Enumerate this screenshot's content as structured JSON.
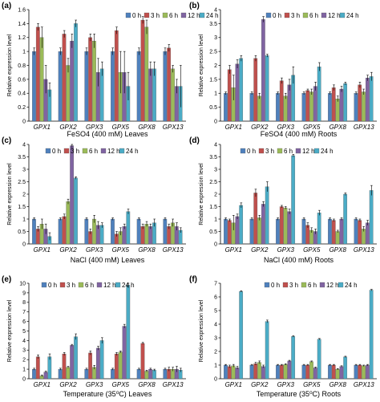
{
  "colors": {
    "0 h": "#4f81bd",
    "3 h": "#c0504d",
    "6 h": "#9bbb59",
    "12 h": "#8064a2",
    "24 h": "#4bacc6"
  },
  "chart_data": [
    {
      "type": "bar",
      "panel": "(a)",
      "caption": "FeSO4 (400 mM)  Leaves",
      "ylabel": "Relative expression level",
      "ylim": [
        0,
        1.6
      ],
      "yticks": [
        "0",
        "0.2",
        "0.4",
        "0.6",
        "0.8",
        "1",
        "1.2",
        "1.4",
        "1.6"
      ],
      "categories": [
        "GPX1",
        "GPX2",
        "GPX3",
        "GPX5",
        "GPX8",
        "GPX13"
      ],
      "series": [
        {
          "name": "0 h",
          "values": [
            1.0,
            1.0,
            1.0,
            1.0,
            1.0,
            1.0
          ],
          "errors": [
            0.05,
            0.05,
            0.05,
            0.05,
            0.05,
            0.05
          ]
        },
        {
          "name": "3 h",
          "values": [
            1.35,
            1.25,
            1.2,
            1.3,
            1.45,
            1.05
          ],
          "errors": [
            0.05,
            0.05,
            0.05,
            0.05,
            0.05,
            0.05
          ]
        },
        {
          "name": "6 h",
          "values": [
            1.2,
            0.8,
            1.15,
            0.7,
            1.35,
            0.75
          ],
          "errors": [
            0.15,
            0.1,
            0.1,
            0.3,
            0.1,
            0.05
          ]
        },
        {
          "name": "12 h",
          "values": [
            0.6,
            1.15,
            0.7,
            0.7,
            0.75,
            0.5
          ],
          "errors": [
            0.2,
            0.1,
            0.2,
            0.3,
            0.1,
            0.1
          ]
        },
        {
          "name": "24 h",
          "values": [
            0.45,
            1.4,
            0.75,
            0.5,
            0.75,
            0.5
          ],
          "errors": [
            0.1,
            0.05,
            0.1,
            0.2,
            0.1,
            0.3
          ]
        }
      ]
    },
    {
      "type": "bar",
      "panel": "(b)",
      "caption": "FeSO4 (400 mM)  Roots",
      "ylabel": "Relative expression level",
      "ylim": [
        0,
        4
      ],
      "yticks": [
        "0",
        "0.5",
        "1",
        "1.5",
        "2",
        "2.5",
        "3",
        "3.5",
        "4"
      ],
      "categories": [
        "GPX1",
        "GPX2",
        "GPX3",
        "GPX5",
        "GPX8",
        "GPX13"
      ],
      "series": [
        {
          "name": "0 h",
          "values": [
            1.0,
            1.0,
            1.0,
            1.0,
            1.0,
            1.0
          ],
          "errors": [
            0.05,
            0.05,
            0.05,
            0.05,
            0.05,
            0.05
          ]
        },
        {
          "name": "3 h",
          "values": [
            1.85,
            2.25,
            1.45,
            1.1,
            1.2,
            1.3
          ],
          "errors": [
            0.15,
            0.1,
            0.1,
            0.05,
            0.1,
            0.1
          ]
        },
        {
          "name": "6 h",
          "values": [
            1.2,
            0.9,
            0.9,
            1.05,
            0.8,
            1.05
          ],
          "errors": [
            0.45,
            0.1,
            0.1,
            0.1,
            0.1,
            0.1
          ]
        },
        {
          "name": "12 h",
          "values": [
            2.05,
            3.65,
            1.3,
            1.25,
            1.15,
            1.55
          ],
          "errors": [
            0.15,
            0.1,
            0.2,
            0.15,
            0.1,
            0.1
          ]
        },
        {
          "name": "24 h",
          "values": [
            2.25,
            2.35,
            1.65,
            1.95,
            1.35,
            1.6
          ],
          "errors": [
            0.1,
            0.05,
            0.3,
            0.15,
            0.05,
            0.15
          ]
        }
      ]
    },
    {
      "type": "bar",
      "panel": "(c)",
      "caption": "NaCl (400 mM)  Leaves",
      "ylabel": "Relative expression level",
      "ylim": [
        0,
        4
      ],
      "yticks": [
        "0",
        "0.5",
        "1",
        "1.5",
        "2",
        "2.5",
        "3",
        "3.5",
        "4"
      ],
      "categories": [
        "GPX1",
        "GPX2",
        "GPX3",
        "GPX5",
        "GPX8",
        "GPX13"
      ],
      "series": [
        {
          "name": "0 h",
          "values": [
            1.0,
            1.0,
            1.0,
            1.0,
            1.0,
            1.0
          ],
          "errors": [
            0.05,
            0.05,
            0.05,
            0.05,
            0.05,
            0.05
          ]
        },
        {
          "name": "3 h",
          "values": [
            0.6,
            1.1,
            0.5,
            0.4,
            0.7,
            0.7
          ],
          "errors": [
            0.1,
            0.1,
            0.1,
            0.1,
            0.1,
            0.1
          ]
        },
        {
          "name": "6 h",
          "values": [
            0.8,
            1.7,
            1.0,
            0.5,
            0.8,
            0.85
          ],
          "errors": [
            0.2,
            0.1,
            0.15,
            0.15,
            0.1,
            0.15
          ]
        },
        {
          "name": "12 h",
          "values": [
            0.6,
            3.95,
            0.75,
            0.7,
            0.7,
            0.7
          ],
          "errors": [
            0.2,
            0.1,
            0.15,
            0.1,
            0.1,
            0.15
          ]
        },
        {
          "name": "24 h",
          "values": [
            0.3,
            2.65,
            0.75,
            1.3,
            0.85,
            0.55
          ],
          "errors": [
            0.15,
            0.05,
            0.1,
            0.1,
            0.15,
            0.1
          ]
        }
      ]
    },
    {
      "type": "bar",
      "panel": "(d)",
      "caption": "NaCl (400 mM)  Roots",
      "ylabel": "Relative expression level",
      "ylim": [
        0,
        4
      ],
      "yticks": [
        "0",
        "0.5",
        "1",
        "1.5",
        "2",
        "2.5",
        "3",
        "3.5",
        "4"
      ],
      "categories": [
        "GPX1",
        "GPX2",
        "GPX3",
        "GPX5",
        "GPX8",
        "GPX13"
      ],
      "series": [
        {
          "name": "0 h",
          "values": [
            1.0,
            1.0,
            1.0,
            1.0,
            1.0,
            1.0
          ],
          "errors": [
            0.05,
            0.05,
            0.05,
            0.05,
            0.05,
            0.05
          ]
        },
        {
          "name": "3 h",
          "values": [
            0.95,
            2.05,
            1.5,
            0.75,
            0.95,
            0.95
          ],
          "errors": [
            0.05,
            0.15,
            0.05,
            0.1,
            0.05,
            0.05
          ]
        },
        {
          "name": "6 h",
          "values": [
            0.85,
            1.05,
            1.45,
            0.55,
            0.5,
            0.6
          ],
          "errors": [
            0.3,
            0.1,
            0.05,
            0.1,
            0.05,
            0.1
          ]
        },
        {
          "name": "12 h",
          "values": [
            1.1,
            1.6,
            1.3,
            0.5,
            1.0,
            0.85
          ],
          "errors": [
            0.1,
            0.1,
            0.1,
            0.1,
            0.05,
            0.1
          ]
        },
        {
          "name": "24 h",
          "values": [
            1.55,
            2.3,
            3.55,
            1.25,
            2.0,
            2.15
          ],
          "errors": [
            0.1,
            0.2,
            0.05,
            0.1,
            0.05,
            0.2
          ]
        }
      ]
    },
    {
      "type": "bar",
      "panel": "(e)",
      "caption": "Temperature (35⁰C)  Leaves",
      "ylabel": "Relative expression level",
      "ylim": [
        0,
        10
      ],
      "yticks": [
        "0",
        "1",
        "2",
        "3",
        "4",
        "5",
        "6",
        "7",
        "8",
        "9",
        "10"
      ],
      "categories": [
        "GPX1",
        "GPX2",
        "GPX3",
        "GPX5",
        "GPX8",
        "GPX13"
      ],
      "series": [
        {
          "name": "0 h",
          "values": [
            1.0,
            1.0,
            1.0,
            1.0,
            1.0,
            1.0
          ],
          "errors": [
            0.1,
            0.1,
            0.1,
            0.1,
            0.1,
            0.1
          ]
        },
        {
          "name": "3 h",
          "values": [
            2.3,
            2.6,
            2.7,
            2.6,
            3.7,
            1.0
          ],
          "errors": [
            0.2,
            0.15,
            0.2,
            0.15,
            0.1,
            0.2
          ]
        },
        {
          "name": "6 h",
          "values": [
            0.3,
            1.2,
            1.2,
            2.8,
            0.8,
            1.0
          ],
          "errors": [
            0.1,
            0.1,
            0.2,
            0.1,
            0.1,
            0.2
          ]
        },
        {
          "name": "12 h",
          "values": [
            0.7,
            3.5,
            3.2,
            5.5,
            1.0,
            1.0
          ],
          "errors": [
            0.1,
            0.1,
            0.2,
            0.2,
            0.1,
            0.3
          ]
        },
        {
          "name": "24 h",
          "values": [
            2.3,
            4.4,
            4.0,
            9.8,
            0.9,
            0.9
          ],
          "errors": [
            0.3,
            0.3,
            0.3,
            0.3,
            0.1,
            0.2
          ]
        }
      ]
    },
    {
      "type": "bar",
      "panel": "(f)",
      "caption": "Temperature (35⁰C)  Roots",
      "ylabel": "Relative expression level",
      "ylim": [
        0,
        7
      ],
      "yticks": [
        "0",
        "1",
        "2",
        "3",
        "4",
        "5",
        "6",
        "7"
      ],
      "categories": [
        "GPX1",
        "GPX2",
        "GPX3",
        "GPX5",
        "GPX8",
        "GPX13"
      ],
      "series": [
        {
          "name": "0 h",
          "values": [
            1.0,
            1.0,
            1.0,
            1.0,
            1.0,
            1.0
          ],
          "errors": [
            0.05,
            0.05,
            0.05,
            0.05,
            0.05,
            0.05
          ]
        },
        {
          "name": "3 h",
          "values": [
            0.9,
            1.1,
            1.0,
            1.0,
            1.0,
            1.0
          ],
          "errors": [
            0.1,
            0.1,
            0.05,
            0.05,
            0.05,
            0.05
          ]
        },
        {
          "name": "6 h",
          "values": [
            0.95,
            1.2,
            1.05,
            1.25,
            0.7,
            0.95
          ],
          "errors": [
            0.1,
            0.1,
            0.05,
            0.05,
            0.05,
            0.05
          ]
        },
        {
          "name": "12 h",
          "values": [
            0.8,
            0.9,
            1.3,
            0.8,
            0.9,
            1.0
          ],
          "errors": [
            0.1,
            0.1,
            0.05,
            0.05,
            0.05,
            0.05
          ]
        },
        {
          "name": "24 h",
          "values": [
            6.4,
            4.2,
            3.1,
            2.9,
            1.6,
            6.5
          ],
          "errors": [
            0.05,
            0.1,
            0.05,
            0.05,
            0.05,
            0.05
          ]
        }
      ]
    }
  ]
}
